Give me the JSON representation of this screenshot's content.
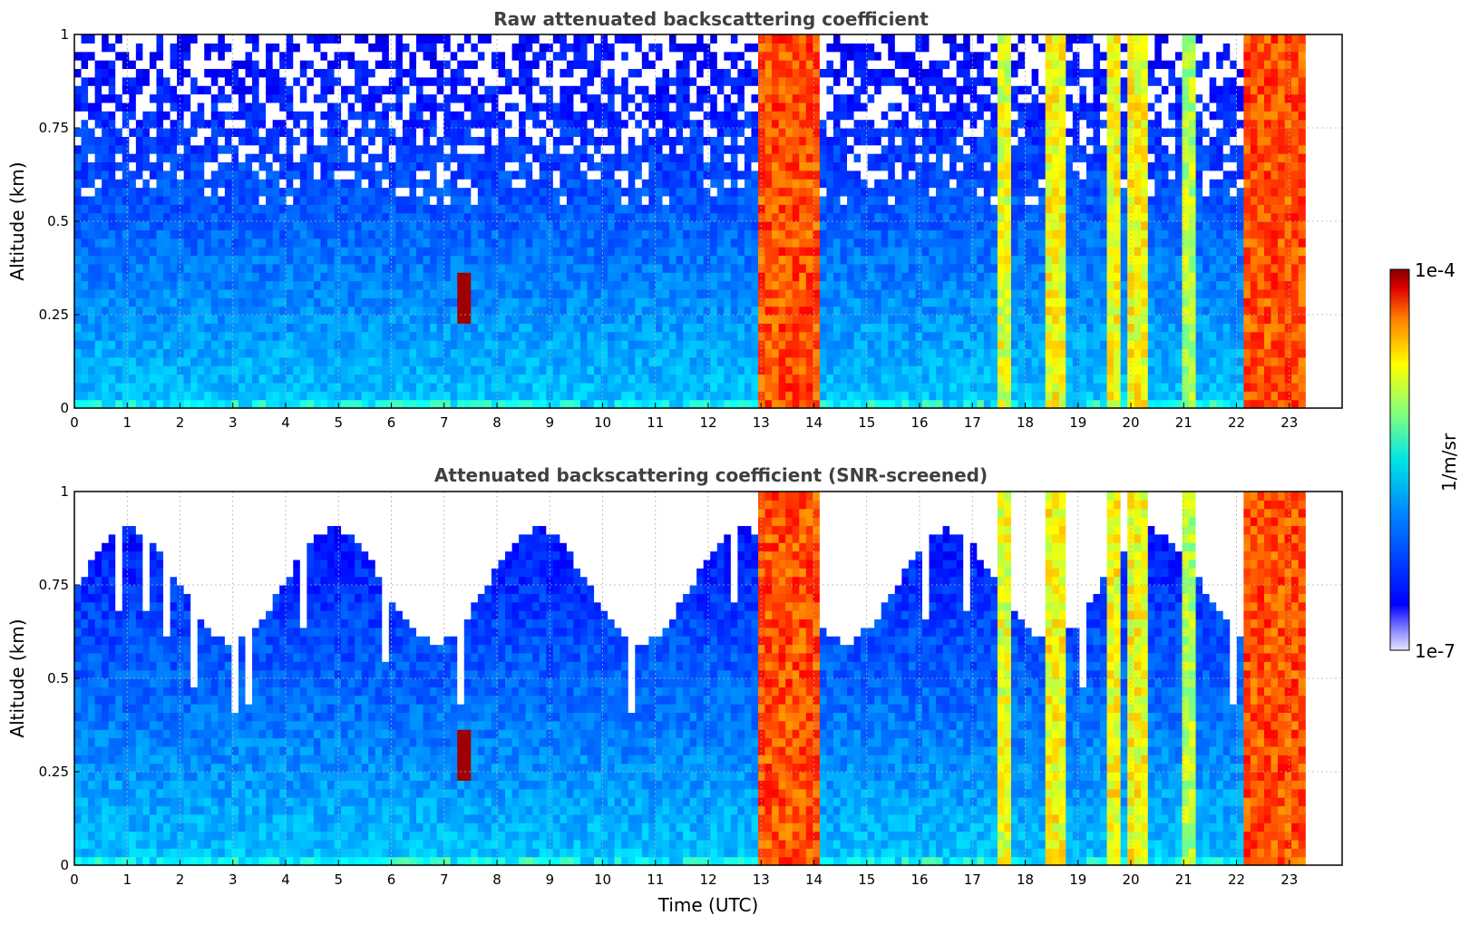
{
  "chart_data": [
    {
      "type": "heatmap",
      "title": "Raw attenuated backscattering coefficient",
      "ylabel": "Altitude (km)",
      "xlabel": "",
      "x_ticks": [
        "0",
        "1",
        "2",
        "3",
        "4",
        "5",
        "6",
        "7",
        "8",
        "9",
        "10",
        "11",
        "12",
        "13",
        "14",
        "15",
        "16",
        "17",
        "18",
        "19",
        "20",
        "21",
        "22",
        "23"
      ],
      "y_ticks": [
        "0",
        "0.25",
        "0.5",
        "0.75",
        "1"
      ],
      "xlim": [
        0,
        24
      ],
      "ylim": [
        0,
        1
      ],
      "grid": true,
      "screened": false,
      "data_end_hour": 23.3,
      "cloud_bands": [
        {
          "start": 12.97,
          "end": 14.17,
          "level": 0.8
        },
        {
          "start": 17.42,
          "end": 17.68,
          "level": 0.6
        },
        {
          "start": 18.35,
          "end": 18.75,
          "level": 0.62
        },
        {
          "start": 19.5,
          "end": 19.75,
          "level": 0.62
        },
        {
          "start": 19.95,
          "end": 20.35,
          "level": 0.62
        },
        {
          "start": 20.95,
          "end": 21.2,
          "level": 0.55
        },
        {
          "start": 22.1,
          "end": 23.3,
          "level": 0.8
        }
      ],
      "features": [
        {
          "label": "aerosol plume",
          "x": 7.4,
          "y_min": 0.23,
          "y_max": 0.37,
          "level": 0.97
        }
      ]
    },
    {
      "type": "heatmap",
      "title": "Attenuated backscattering coefficient (SNR-screened)",
      "ylabel": "Altitude (km)",
      "xlabel": "Time (UTC)",
      "x_ticks": [
        "0",
        "1",
        "2",
        "3",
        "4",
        "5",
        "6",
        "7",
        "8",
        "9",
        "10",
        "11",
        "12",
        "13",
        "14",
        "15",
        "16",
        "17",
        "18",
        "19",
        "20",
        "21",
        "22",
        "23"
      ],
      "y_ticks": [
        "0",
        "0.25",
        "0.5",
        "0.75",
        "1"
      ],
      "xlim": [
        0,
        24
      ],
      "ylim": [
        0,
        1
      ],
      "grid": true,
      "screened": true,
      "data_end_hour": 23.3,
      "cloud_bands": [
        {
          "start": 12.97,
          "end": 14.17,
          "level": 0.8
        },
        {
          "start": 17.42,
          "end": 17.68,
          "level": 0.6
        },
        {
          "start": 18.35,
          "end": 18.75,
          "level": 0.62
        },
        {
          "start": 19.5,
          "end": 19.75,
          "level": 0.62
        },
        {
          "start": 19.95,
          "end": 20.35,
          "level": 0.62
        },
        {
          "start": 20.95,
          "end": 21.2,
          "level": 0.55
        },
        {
          "start": 22.1,
          "end": 23.3,
          "level": 0.8
        }
      ],
      "features": [
        {
          "label": "aerosol plume",
          "x": 7.4,
          "y_min": 0.23,
          "y_max": 0.37,
          "level": 0.97
        }
      ]
    }
  ],
  "colorbar": {
    "label": "1/m/sr",
    "max_label": "1e-4",
    "min_label": "1e-7",
    "colormap": "jet"
  }
}
